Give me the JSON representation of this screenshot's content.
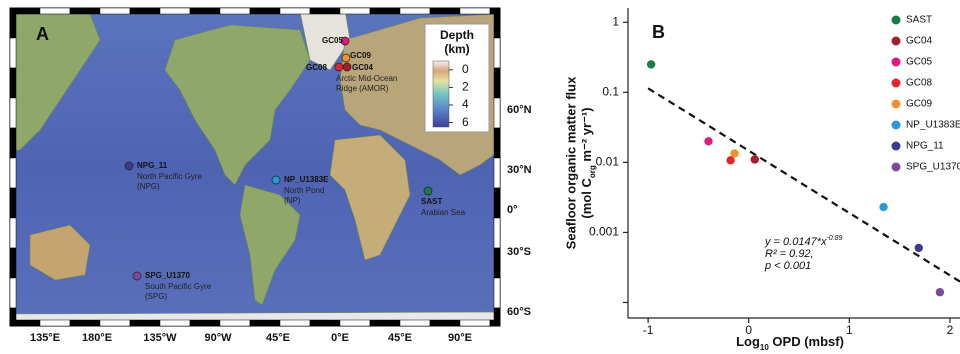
{
  "panel_a": {
    "label": "A",
    "legend": {
      "title": "Depth",
      "unit": "(km)",
      "ticks": [
        0,
        2,
        4,
        6
      ],
      "lim": [
        -1,
        6.5
      ]
    },
    "lon_ticks": [
      "135°E",
      "180°E",
      "135°W",
      "90°W",
      "45°E",
      "0°E",
      "45°E",
      "90°E"
    ],
    "lat_ticks": [
      "60°N",
      "30°N",
      "0°",
      "30°S",
      "60°S"
    ],
    "sites": [
      {
        "name": "GC05",
        "region": []
      },
      {
        "name": "GC09",
        "region": []
      },
      {
        "name": "GC08",
        "region": []
      },
      {
        "name": "GC04",
        "region": [
          "Arctic Mid-Ocean",
          "Ridge (AMOR)"
        ]
      },
      {
        "name": "NPG_11",
        "region": [
          "North Pacific Gyre",
          "(NPG)"
        ]
      },
      {
        "name": "NP_U1383E",
        "region": [
          "North Pond",
          "(NP)"
        ]
      },
      {
        "name": "SAST",
        "region": [
          "Arabian Sea"
        ]
      },
      {
        "name": "SPG_U1370",
        "region": [
          "South Pacific Gyre",
          "(SPG)"
        ]
      }
    ]
  },
  "chart_data": {
    "type": "scatter",
    "panel_label": "B",
    "ylabel": [
      "Seafloor organic matter flux",
      "(mol C",
      "org",
      " m⁻² yr⁻¹)"
    ],
    "xlabel": [
      "Log",
      "10",
      " OPD (mbsf)"
    ],
    "log_y": true,
    "xlim": [
      -1.2,
      2.1
    ],
    "xticks": [
      -1,
      0,
      1,
      2
    ],
    "ylim": [
      6e-05,
      1.6
    ],
    "yticks": [
      1,
      0.1,
      0.01,
      0.001,
      {
        "value": 0.0001,
        "label": null
      }
    ],
    "series": [
      {
        "name": "SAST",
        "color": "#1a7a4a",
        "x": [
          -0.97
        ],
        "values": [
          0.25
        ]
      },
      {
        "name": "GC04",
        "color": "#a31f2a",
        "x": [
          0.06
        ],
        "values": [
          0.011
        ]
      },
      {
        "name": "GC05",
        "color": "#e0197d",
        "x": [
          -0.4
        ],
        "values": [
          0.02
        ]
      },
      {
        "name": "GC08",
        "color": "#e3262b",
        "x": [
          -0.18
        ],
        "values": [
          0.0107
        ]
      },
      {
        "name": "GC09",
        "color": "#f0912a",
        "x": [
          -0.14
        ],
        "values": [
          0.0134
        ]
      },
      {
        "name": "NP_U1383E",
        "color": "#2a9ad6",
        "x": [
          1.34
        ],
        "values": [
          0.0023
        ]
      },
      {
        "name": "NPG_11",
        "color": "#3c3a8c",
        "x": [
          1.69
        ],
        "values": [
          0.0006
        ]
      },
      {
        "name": "SPG_U1370",
        "color": "#7b4a9a",
        "x": [
          1.9
        ],
        "values": [
          0.00014
        ]
      }
    ],
    "trendline": {
      "coefficient": 0.0147,
      "exponent": -0.89
    },
    "annotation": [
      "y = 0.0147*x",
      "R² = 0.92,",
      "p < 0.001"
    ]
  }
}
